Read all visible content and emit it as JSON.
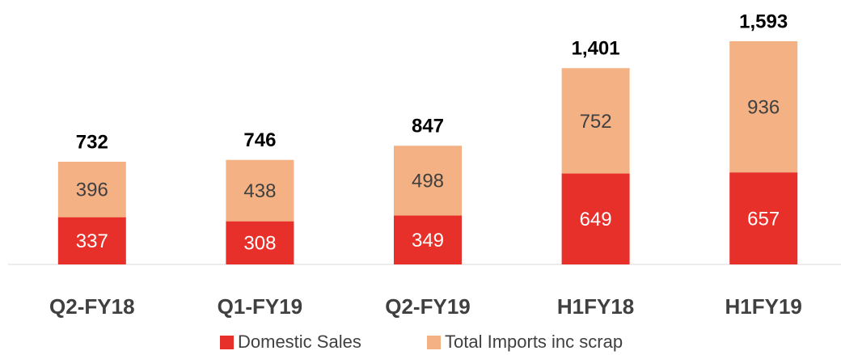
{
  "chart_data": {
    "type": "stacked_bar",
    "categories": [
      "Q2-FY18",
      "Q1-FY19",
      "Q2-FY19",
      "H1FY18",
      "H1FY19"
    ],
    "series": [
      {
        "name": "Domestic Sales",
        "color": "#e8302a",
        "values": [
          337,
          308,
          349,
          649,
          657
        ]
      },
      {
        "name": "Total Imports inc scrap",
        "color": "#f4b183",
        "values": [
          396,
          438,
          498,
          752,
          936
        ]
      }
    ],
    "totals": [
      732,
      746,
      847,
      1401,
      1593
    ],
    "total_labels": [
      "732",
      "746",
      "847",
      "1,401",
      "1,593"
    ]
  }
}
